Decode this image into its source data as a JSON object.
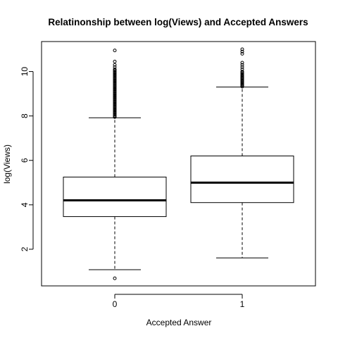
{
  "chart_data": {
    "type": "boxplot",
    "title": "Relatinonship between log(Views) and Accepted Answers",
    "xlabel": "Accepted Answer",
    "ylabel": "log(Views)",
    "categories": [
      "0",
      "1"
    ],
    "ylim": [
      0.35,
      11.35
    ],
    "yticks": [
      2,
      4,
      6,
      8,
      10
    ],
    "grid": false,
    "boxes": [
      {
        "category": "0",
        "whisker_low": 1.08,
        "q1": 3.47,
        "median": 4.2,
        "q3": 5.25,
        "whisker_high": 7.92,
        "outliers_low": [
          0.69
        ],
        "outliers_high": [
          7.95,
          8.0,
          8.05,
          8.1,
          8.15,
          8.2,
          8.25,
          8.3,
          8.35,
          8.4,
          8.45,
          8.5,
          8.55,
          8.6,
          8.65,
          8.7,
          8.75,
          8.8,
          8.85,
          8.9,
          8.95,
          9.0,
          9.05,
          9.1,
          9.15,
          9.2,
          9.25,
          9.3,
          9.35,
          9.4,
          9.45,
          9.5,
          9.55,
          9.6,
          9.65,
          9.7,
          9.75,
          9.8,
          9.85,
          9.9,
          9.95,
          10.0,
          10.05,
          10.1,
          10.2,
          10.3,
          10.45,
          10.95
        ]
      },
      {
        "category": "1",
        "whisker_low": 1.61,
        "q1": 4.1,
        "median": 5.0,
        "q3": 6.2,
        "whisker_high": 9.3,
        "outliers_low": [],
        "outliers_high": [
          9.32,
          9.36,
          9.4,
          9.44,
          9.48,
          9.52,
          9.56,
          9.6,
          9.64,
          9.68,
          9.72,
          9.76,
          9.8,
          9.85,
          9.9,
          9.95,
          10.0,
          10.1,
          10.2,
          10.3,
          10.4,
          10.8,
          10.9,
          11.0
        ]
      }
    ]
  }
}
